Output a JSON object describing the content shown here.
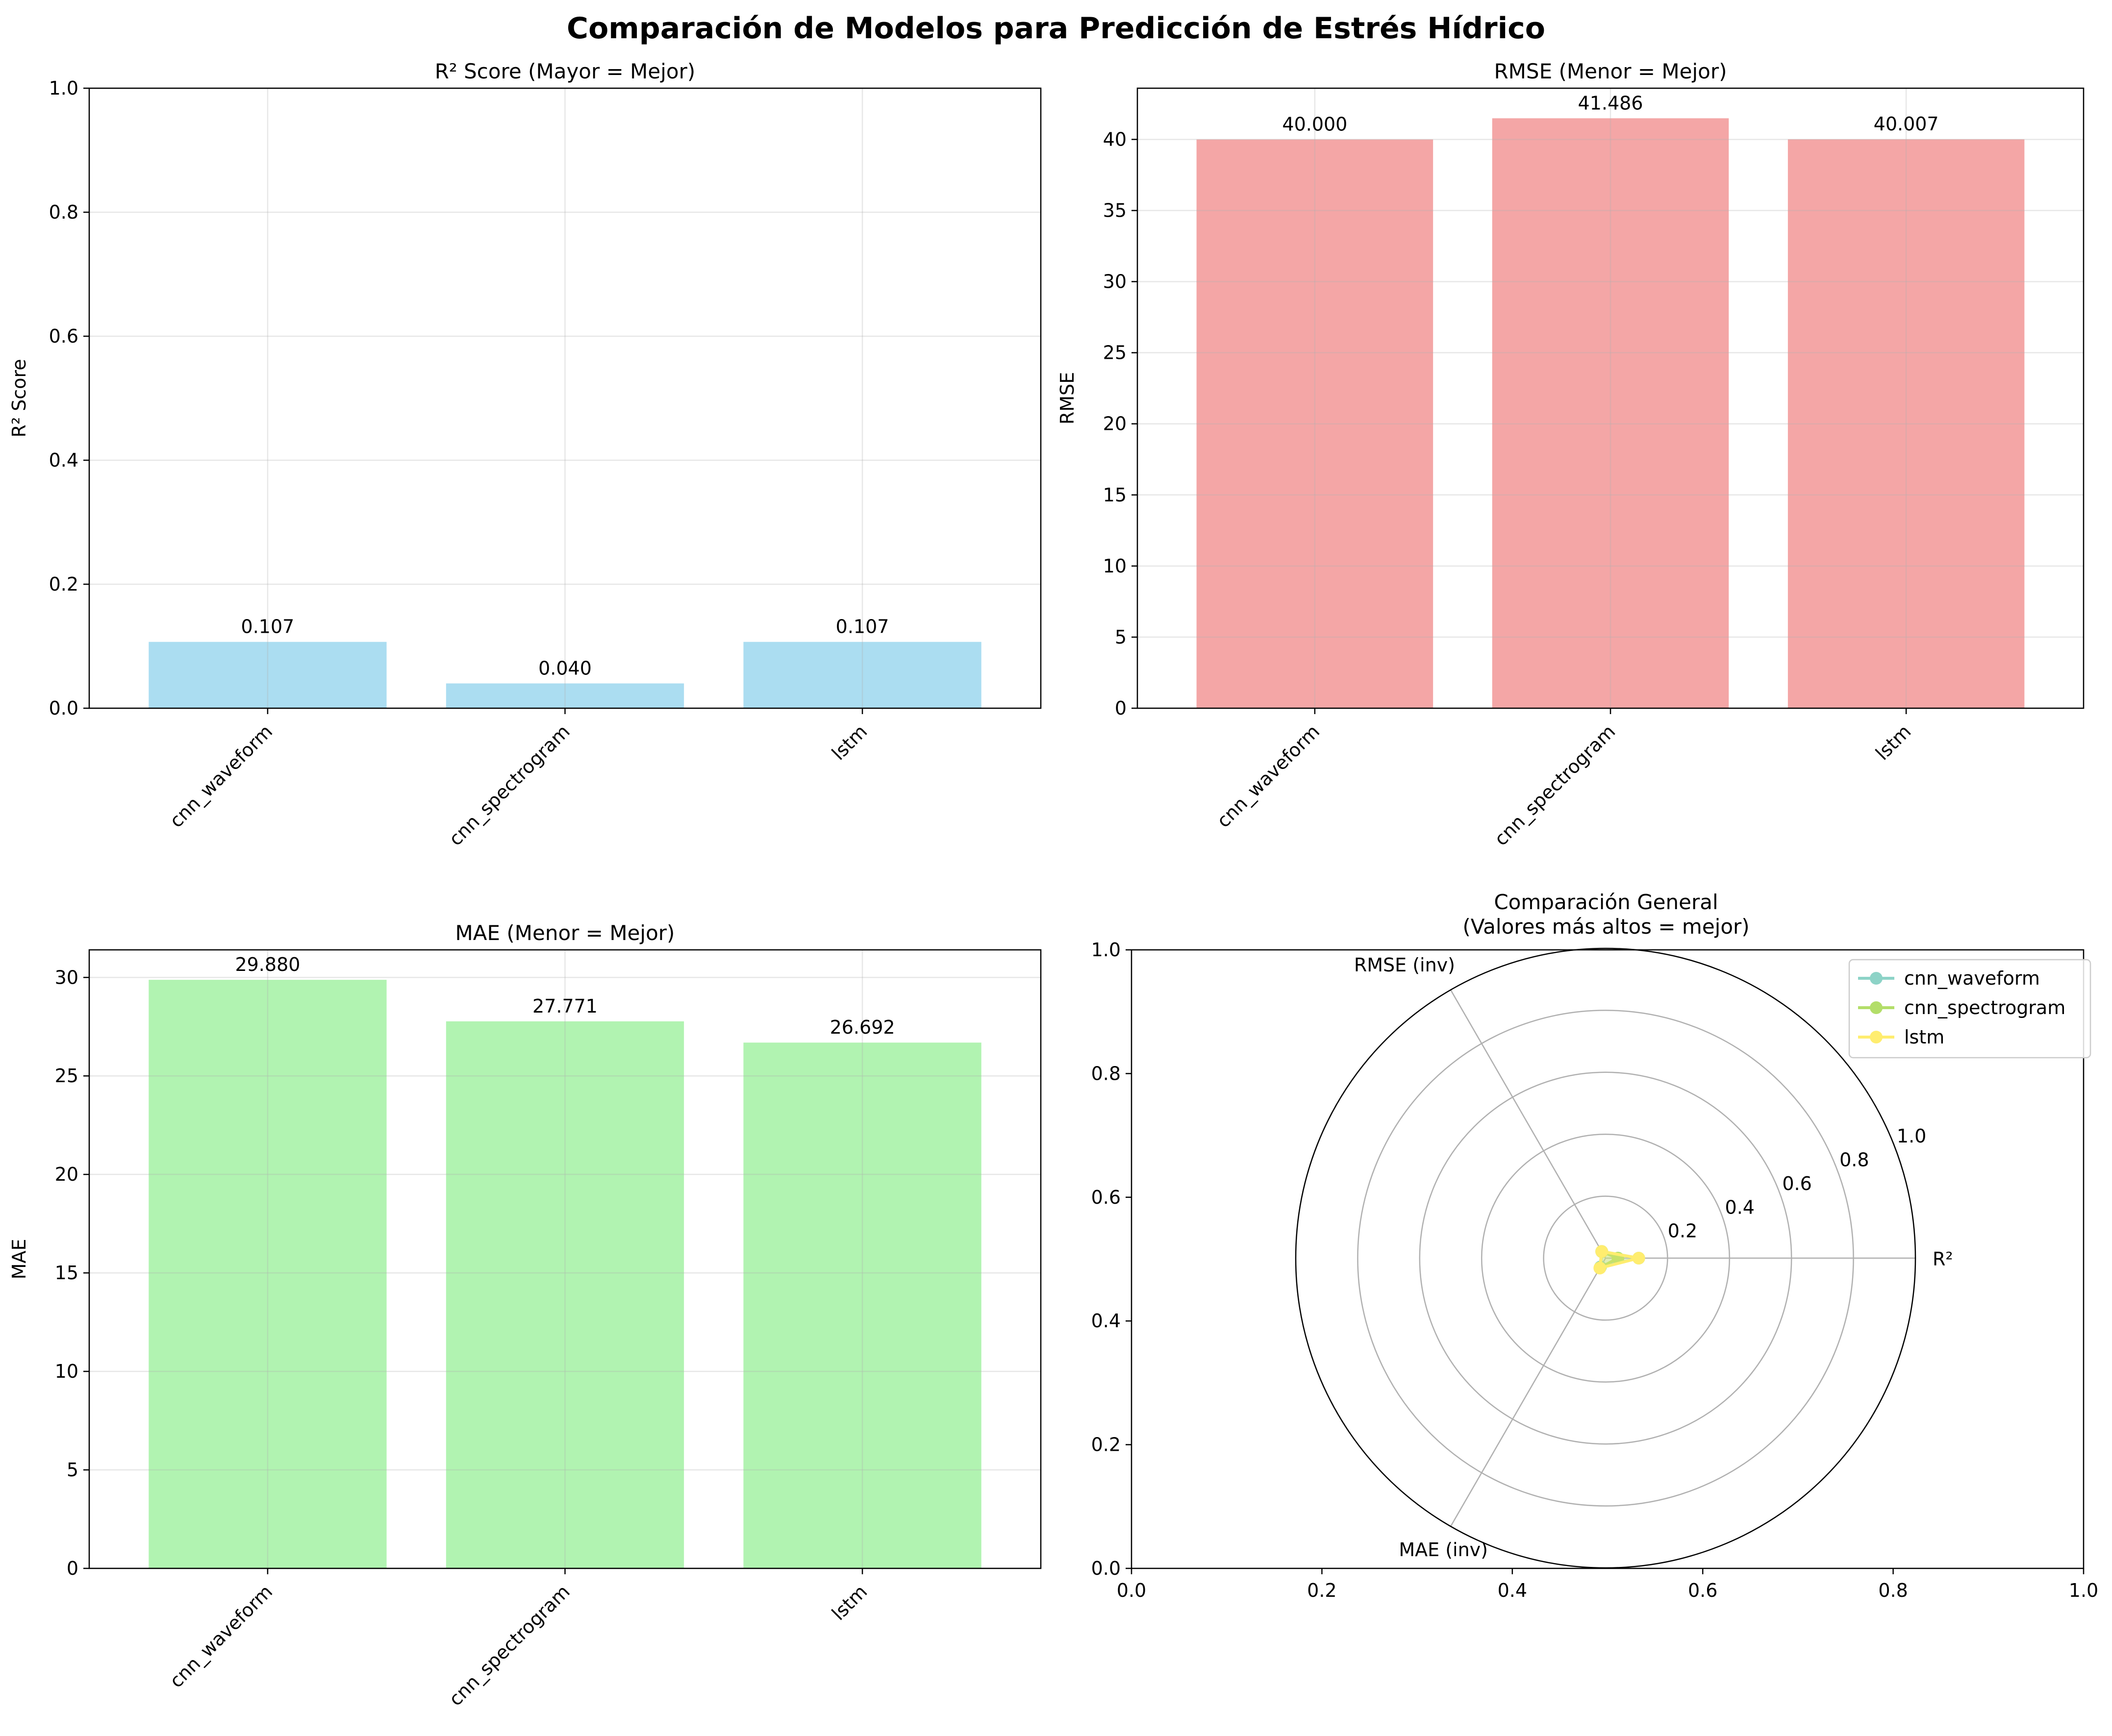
{
  "title": "Comparación de Modelos para Predicción de Estrés Hídrico",
  "colors": {
    "r2_bar": "#87CEEB",
    "rmse_bar": "#F08080",
    "mae_bar": "#90EE90",
    "series": [
      "#8DD3C7",
      "#B3DE69",
      "#FFED6F"
    ]
  },
  "chart_data": [
    {
      "type": "bar",
      "title": "R² Score (Mayor = Mejor)",
      "xlabel": "",
      "ylabel": "R² Score",
      "categories": [
        "cnn_waveform",
        "cnn_spectrogram",
        "lstm"
      ],
      "values": [
        0.107,
        0.04,
        0.107
      ],
      "value_labels": [
        "0.107",
        "0.040",
        "0.107"
      ],
      "ylim": [
        0,
        1.0
      ],
      "yticks": [
        "0.0",
        "0.2",
        "0.4",
        "0.6",
        "0.8",
        "1.0"
      ],
      "grid": true
    },
    {
      "type": "bar",
      "title": "RMSE (Menor = Mejor)",
      "xlabel": "",
      "ylabel": "RMSE",
      "categories": [
        "cnn_waveform",
        "cnn_spectrogram",
        "lstm"
      ],
      "values": [
        40.0,
        41.486,
        40.007
      ],
      "value_labels": [
        "40.000",
        "41.486",
        "40.007"
      ],
      "ylim": [
        0,
        43.6
      ],
      "yticks": [
        "0",
        "5",
        "10",
        "15",
        "20",
        "25",
        "30",
        "35",
        "40"
      ],
      "grid": true
    },
    {
      "type": "bar",
      "title": "MAE (Menor = Mejor)",
      "xlabel": "",
      "ylabel": "MAE",
      "categories": [
        "cnn_waveform",
        "cnn_spectrogram",
        "lstm"
      ],
      "values": [
        29.88,
        27.771,
        26.692
      ],
      "value_labels": [
        "29.880",
        "27.771",
        "26.692"
      ],
      "ylim": [
        0,
        31.4
      ],
      "yticks": [
        "0",
        "5",
        "10",
        "15",
        "20",
        "25",
        "30"
      ],
      "grid": true
    },
    {
      "type": "radar",
      "title": "Comparación General\n(Valores más altos = mejor)",
      "axes": [
        "R²",
        "RMSE (inv)",
        "MAE (inv)"
      ],
      "rlim": [
        0,
        1.0
      ],
      "rticks": [
        "0.2",
        "0.4",
        "0.6",
        "0.8",
        "1.0"
      ],
      "background_axes": {
        "xlim": [
          0,
          1.0
        ],
        "ylim": [
          0,
          1.0
        ],
        "xticks": [
          "0.0",
          "0.2",
          "0.4",
          "0.6",
          "0.8",
          "1.0"
        ],
        "yticks": [
          "0.0",
          "0.2",
          "0.4",
          "0.6",
          "0.8",
          "1.0"
        ]
      },
      "series": [
        {
          "name": "cnn_waveform",
          "values": [
            0.107,
            0.025,
            0.033
          ]
        },
        {
          "name": "cnn_spectrogram",
          "values": [
            0.04,
            0.024,
            0.036
          ]
        },
        {
          "name": "lstm",
          "values": [
            0.107,
            0.025,
            0.037
          ]
        }
      ],
      "legend": "upper right",
      "grid": true
    }
  ]
}
